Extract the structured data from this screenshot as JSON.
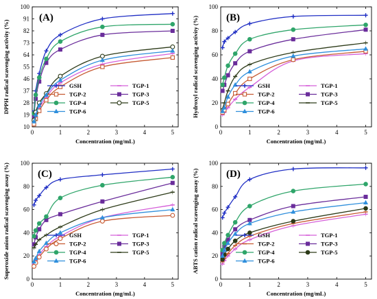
{
  "chart_data": [
    {
      "type": "line",
      "panel_label": "(A)",
      "xlabel": "Concentration (mg/mL)",
      "ylabel": "DPPH radical scavenging activity (%)",
      "xlim": [
        0,
        5.2
      ],
      "ylim": [
        10,
        100
      ],
      "xticks": [
        0,
        1,
        2,
        3,
        4,
        5
      ],
      "yticks": [
        10,
        19,
        28,
        37,
        46,
        55,
        64,
        73,
        82,
        91,
        100
      ],
      "legend_cols": 2,
      "series": [
        {
          "name": "GSH",
          "color": "#1f2ec4",
          "marker": "plus",
          "x": [
            0.0625,
            0.125,
            0.25,
            0.5,
            1,
            2.5,
            5
          ],
          "y": [
            22,
            37,
            50,
            67,
            79,
            91,
            95
          ]
        },
        {
          "name": "TGP-1",
          "color": "#d55fd9",
          "marker": "line",
          "x": [
            0.0625,
            0.125,
            0.25,
            0.5,
            1,
            2.5,
            5
          ],
          "y": [
            13,
            17,
            24,
            32,
            43,
            57,
            65
          ]
        },
        {
          "name": "TGP-2",
          "color": "#c65a32",
          "marker": "square-open",
          "x": [
            0.0625,
            0.125,
            0.25,
            0.5,
            1,
            2.5,
            5
          ],
          "y": [
            12,
            16,
            22,
            30,
            40,
            55,
            62
          ]
        },
        {
          "name": "TGP-3",
          "color": "#6a2d9b",
          "marker": "square",
          "x": [
            0.0625,
            0.125,
            0.25,
            0.5,
            1,
            2.5,
            5
          ],
          "y": [
            18,
            31,
            44,
            58,
            68,
            79,
            82
          ]
        },
        {
          "name": "TGP-4",
          "color": "#2fa56a",
          "marker": "circle",
          "x": [
            0.0625,
            0.125,
            0.25,
            0.5,
            1,
            2.5,
            5
          ],
          "y": [
            20,
            34,
            47,
            61,
            74,
            85,
            87
          ]
        },
        {
          "name": "TGP-5",
          "color": "#2c3a18",
          "marker": "circle-open",
          "x": [
            0.0625,
            0.125,
            0.25,
            0.5,
            1,
            2.5,
            5
          ],
          "y": [
            15,
            21,
            28,
            35,
            48,
            63,
            70
          ]
        },
        {
          "name": "TGP-6",
          "color": "#2f8fdc",
          "marker": "triangle",
          "x": [
            0.0625,
            0.125,
            0.25,
            0.5,
            1,
            2.5,
            5
          ],
          "y": [
            14,
            19,
            26,
            34,
            45,
            60,
            67
          ]
        }
      ]
    },
    {
      "type": "line",
      "panel_label": "(B)",
      "xlabel": "Concentration (mg/mL)",
      "ylabel": "Hydroxyl radical scavenging activity (%)",
      "xlim": [
        0,
        5.2
      ],
      "ylim": [
        0,
        100
      ],
      "xticks": [
        0,
        1,
        2,
        3,
        4,
        5
      ],
      "yticks": [
        0,
        20,
        40,
        60,
        80,
        100
      ],
      "legend_cols": 2,
      "series": [
        {
          "name": "GSH",
          "color": "#1f2ec4",
          "marker": "plus",
          "x": [
            0.0625,
            0.125,
            0.25,
            0.5,
            1,
            2.5,
            5
          ],
          "y": [
            66,
            71,
            74,
            79,
            86,
            92,
            93
          ]
        },
        {
          "name": "TGP-1",
          "color": "#d55fd9",
          "marker": "line",
          "x": [
            0.0625,
            0.125,
            0.25,
            0.5,
            1,
            2.5,
            5
          ],
          "y": [
            10,
            12,
            16,
            23,
            33,
            55,
            61
          ]
        },
        {
          "name": "TGP-2",
          "color": "#c65a32",
          "marker": "square-open",
          "x": [
            0.0625,
            0.125,
            0.25,
            0.5,
            1,
            2.5,
            5
          ],
          "y": [
            12,
            14,
            19,
            28,
            40,
            56,
            63
          ]
        },
        {
          "name": "TGP-3",
          "color": "#6a2d9b",
          "marker": "square",
          "x": [
            0.0625,
            0.125,
            0.25,
            0.5,
            1,
            2.5,
            5
          ],
          "y": [
            30,
            35,
            43,
            53,
            63,
            73,
            81
          ]
        },
        {
          "name": "TGP-4",
          "color": "#2fa56a",
          "marker": "circle",
          "x": [
            0.0625,
            0.125,
            0.25,
            0.5,
            1,
            2.5,
            5
          ],
          "y": [
            35,
            41,
            51,
            61,
            73,
            81,
            85
          ]
        },
        {
          "name": "TGP-5",
          "color": "#2c3a18",
          "marker": "line",
          "x": [
            0.0625,
            0.125,
            0.25,
            0.5,
            1,
            2.5,
            5
          ],
          "y": [
            15,
            20,
            30,
            42,
            52,
            62,
            70
          ]
        },
        {
          "name": "TGP-6",
          "color": "#2f8fdc",
          "marker": "triangle",
          "x": [
            0.0625,
            0.125,
            0.25,
            0.5,
            1,
            2.5,
            5
          ],
          "y": [
            13,
            16,
            25,
            35,
            46,
            59,
            65
          ]
        }
      ]
    },
    {
      "type": "line",
      "panel_label": "(C)",
      "xlabel": "Concentration (mg/mL)",
      "ylabel": "Superoxide anion radical scavenging assay (%)",
      "xlim": [
        0,
        5.2
      ],
      "ylim": [
        0,
        100
      ],
      "xticks": [
        0,
        1,
        2,
        3,
        4,
        5
      ],
      "yticks": [
        0,
        20,
        40,
        60,
        80,
        100
      ],
      "legend_cols": 2,
      "series": [
        {
          "name": "GSH",
          "color": "#1f2ec4",
          "marker": "plus",
          "x": [
            0.0625,
            0.125,
            0.25,
            0.5,
            1,
            2.5,
            5
          ],
          "y": [
            64,
            68,
            72,
            79,
            86,
            90,
            95
          ]
        },
        {
          "name": "TGP-1",
          "color": "#d55fd9",
          "marker": "line",
          "x": [
            0.0625,
            0.125,
            0.25,
            0.5,
            1,
            2.5,
            5
          ],
          "y": [
            13,
            16,
            21,
            28,
            37,
            53,
            64
          ]
        },
        {
          "name": "TGP-2",
          "color": "#c65a32",
          "marker": "circle-open",
          "x": [
            0.0625,
            0.125,
            0.25,
            0.5,
            1,
            2.5,
            5
          ],
          "y": [
            11,
            14,
            19,
            26,
            35,
            50,
            55
          ]
        },
        {
          "name": "TGP-3",
          "color": "#6a2d9b",
          "marker": "square",
          "x": [
            0.0625,
            0.125,
            0.25,
            0.5,
            1,
            2.5,
            5
          ],
          "y": [
            30,
            36,
            43,
            51,
            56,
            67,
            83
          ]
        },
        {
          "name": "TGP-4",
          "color": "#2fa56a",
          "marker": "circle",
          "x": [
            0.0625,
            0.125,
            0.25,
            0.5,
            1,
            2.5,
            5
          ],
          "y": [
            37,
            42,
            48,
            54,
            70,
            81,
            88
          ]
        },
        {
          "name": "TGP-5",
          "color": "#2c3a18",
          "marker": "line",
          "x": [
            0.0625,
            0.125,
            0.25,
            0.5,
            1,
            2.5,
            5
          ],
          "y": [
            27,
            30,
            34,
            38,
            45,
            60,
            75
          ]
        },
        {
          "name": "TGP-6",
          "color": "#2f8fdc",
          "marker": "triangle",
          "x": [
            0.0625,
            0.125,
            0.25,
            0.5,
            1,
            2.5,
            5
          ],
          "y": [
            15,
            18,
            24,
            31,
            40,
            53,
            60
          ]
        }
      ]
    },
    {
      "type": "line",
      "panel_label": "(D)",
      "xlabel": "Concentration (mg/mL)",
      "ylabel": "ABTS cation radical scavenging assay (%)",
      "xlim": [
        0,
        5.2
      ],
      "ylim": [
        0,
        100
      ],
      "xticks": [
        0,
        1,
        2,
        3,
        4,
        5
      ],
      "yticks": [
        0,
        20,
        40,
        60,
        80,
        100
      ],
      "legend_cols": 2,
      "series": [
        {
          "name": "GSH",
          "color": "#1f2ec4",
          "marker": "plus",
          "x": [
            0.0625,
            0.125,
            0.25,
            0.5,
            1,
            2.5,
            5
          ],
          "y": [
            53,
            57,
            62,
            71,
            86,
            95,
            96
          ]
        },
        {
          "name": "TGP-1",
          "color": "#d55fd9",
          "marker": "line",
          "x": [
            0.0625,
            0.125,
            0.25,
            0.5,
            1,
            2.5,
            5
          ],
          "y": [
            13,
            16,
            20,
            26,
            34,
            46,
            56
          ]
        },
        {
          "name": "TGP-2",
          "color": "#c65a32",
          "marker": "line",
          "x": [
            0.0625,
            0.125,
            0.25,
            0.5,
            1,
            2.5,
            5
          ],
          "y": [
            15,
            18,
            22,
            29,
            37,
            48,
            58
          ]
        },
        {
          "name": "TGP-3",
          "color": "#6a2d9b",
          "marker": "square",
          "x": [
            0.0625,
            0.125,
            0.25,
            0.5,
            1,
            2.5,
            5
          ],
          "y": [
            22,
            28,
            34,
            43,
            51,
            63,
            71
          ]
        },
        {
          "name": "TGP-4",
          "color": "#2fa56a",
          "marker": "circle",
          "x": [
            0.0625,
            0.125,
            0.25,
            0.5,
            1,
            2.5,
            5
          ],
          "y": [
            25,
            31,
            38,
            49,
            63,
            76,
            82
          ]
        },
        {
          "name": "TGP-5",
          "color": "#2c3a18",
          "marker": "circle",
          "x": [
            0.0625,
            0.125,
            0.25,
            0.5,
            1,
            2.5,
            5
          ],
          "y": [
            17,
            21,
            26,
            33,
            40,
            50,
            61
          ]
        },
        {
          "name": "TGP-6",
          "color": "#2f8fdc",
          "marker": "triangle",
          "x": [
            0.0625,
            0.125,
            0.25,
            0.5,
            1,
            2.5,
            5
          ],
          "y": [
            20,
            25,
            31,
            39,
            48,
            58,
            66
          ]
        }
      ]
    }
  ]
}
